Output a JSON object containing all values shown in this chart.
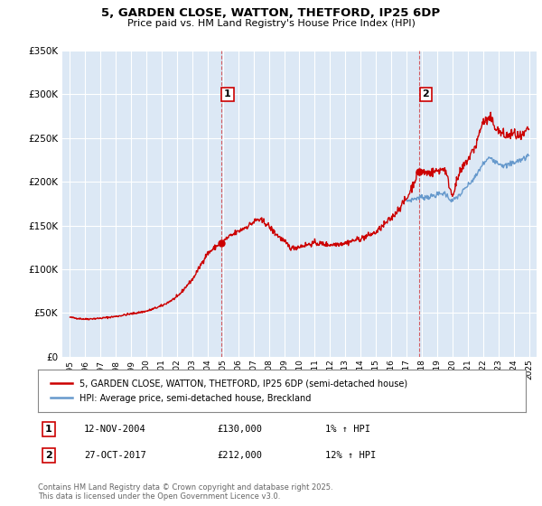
{
  "title": "5, GARDEN CLOSE, WATTON, THETFORD, IP25 6DP",
  "subtitle": "Price paid vs. HM Land Registry's House Price Index (HPI)",
  "ylim": [
    0,
    350000
  ],
  "xlim_start": 1994.5,
  "xlim_end": 2025.5,
  "sale1_year": 2004.87,
  "sale1_price": 130000,
  "sale1_label": "1",
  "sale1_date": "12-NOV-2004",
  "sale1_hpi": "1%",
  "sale2_year": 2017.83,
  "sale2_price": 212000,
  "sale2_label": "2",
  "sale2_date": "27-OCT-2017",
  "sale2_hpi": "12%",
  "red_line_color": "#cc0000",
  "blue_line_color": "#6699cc",
  "vline_color": "#cc0000",
  "background_color": "#dce8f5",
  "legend_label_red": "5, GARDEN CLOSE, WATTON, THETFORD, IP25 6DP (semi-detached house)",
  "legend_label_blue": "HPI: Average price, semi-detached house, Breckland",
  "footer": "Contains HM Land Registry data © Crown copyright and database right 2025.\nThis data is licensed under the Open Government Licence v3.0.",
  "marker_box_color": "#cc0000"
}
